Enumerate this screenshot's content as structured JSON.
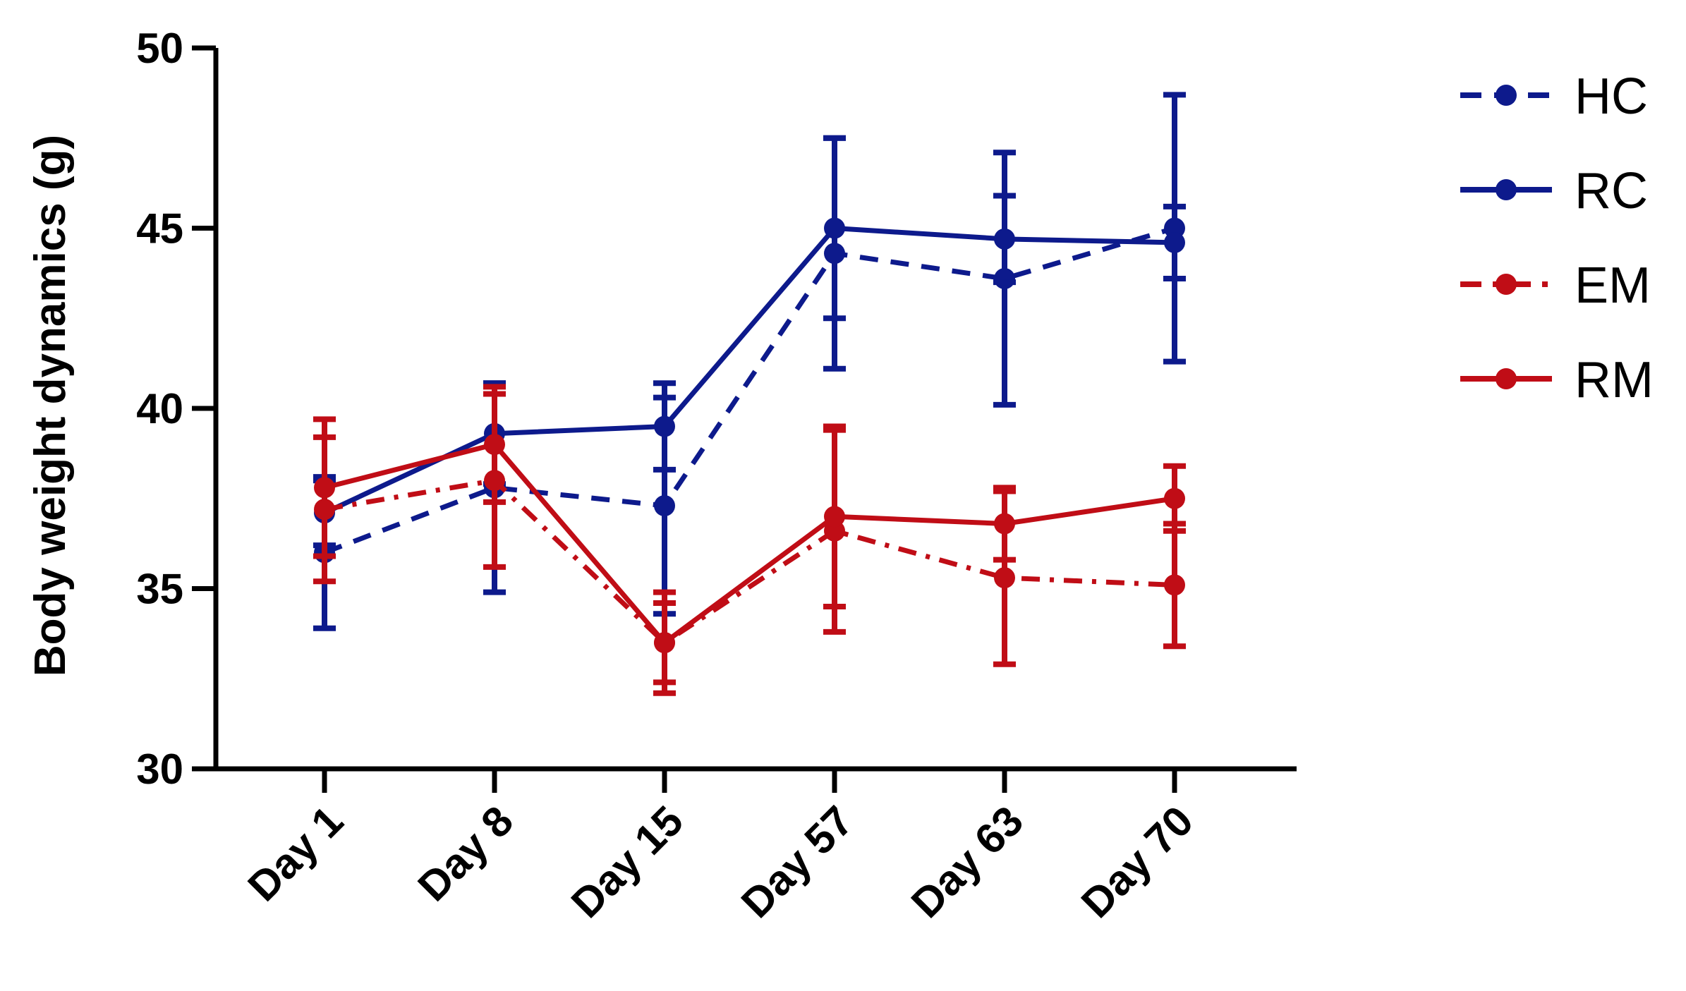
{
  "chart_data": {
    "type": "line",
    "title": "",
    "xlabel": "",
    "ylabel": "Body weight dynamics (g)",
    "categories": [
      "Day 1",
      "Day 8",
      "Day 15",
      "Day 57",
      "Day 63",
      "Day 70"
    ],
    "ylim": [
      30,
      50
    ],
    "yticks": [
      "30",
      "35",
      "40",
      "45",
      "50"
    ],
    "grid": false,
    "legend_position": "top-right",
    "series": [
      {
        "name": "HC",
        "color": "#0d1a8c",
        "line_style": "dashed",
        "values": [
          36.0,
          37.8,
          37.3,
          44.3,
          43.6,
          45.0
        ],
        "error": [
          2.1,
          2.9,
          3.0,
          3.2,
          3.5,
          3.7
        ]
      },
      {
        "name": "RC",
        "color": "#0d1a8c",
        "line_style": "solid",
        "values": [
          37.1,
          39.3,
          39.5,
          45.0,
          44.7,
          44.6
        ],
        "error": [
          0.9,
          1.4,
          1.2,
          2.5,
          1.2,
          1.0
        ]
      },
      {
        "name": "EM",
        "color": "#c00d16",
        "line_style": "dashdot",
        "values": [
          37.2,
          38.0,
          33.5,
          36.6,
          35.3,
          35.1
        ],
        "error": [
          2.0,
          2.4,
          1.4,
          2.8,
          2.4,
          1.7
        ]
      },
      {
        "name": "RM",
        "color": "#c00d16",
        "line_style": "solid",
        "values": [
          37.8,
          39.0,
          33.5,
          37.0,
          36.8,
          37.5
        ],
        "error": [
          1.9,
          1.6,
          1.1,
          2.5,
          1.0,
          0.9
        ]
      }
    ]
  }
}
